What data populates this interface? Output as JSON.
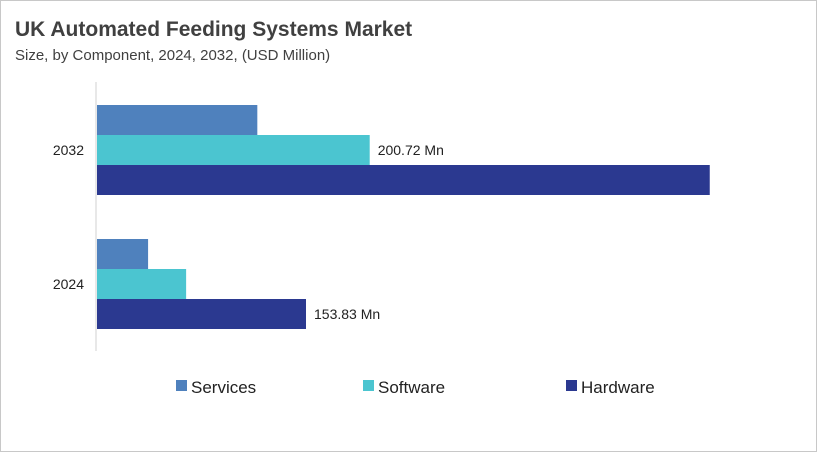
{
  "chart_data": {
    "type": "bar",
    "orientation": "horizontal",
    "title": "UK Automated Feeding Systems Market",
    "subtitle": "Size, by Component, 2024, 2032, (USD Million)",
    "categories": [
      "2032",
      "2024"
    ],
    "series": [
      {
        "name": "Services",
        "color": "#4f81bd",
        "values": [
          118,
          37.6
        ]
      },
      {
        "name": "Software",
        "color": "#4bc5d0",
        "values": [
          200.72,
          65.6
        ]
      },
      {
        "name": "Hardware",
        "color": "#2b3990",
        "values": [
          451,
          153.83
        ]
      }
    ],
    "data_labels": [
      {
        "category": "2032",
        "series": "Software",
        "text": "200.72 Mn"
      },
      {
        "category": "2024",
        "series": "Hardware",
        "text": "153.83 Mn"
      }
    ],
    "legend": "bottom",
    "grid": false
  }
}
